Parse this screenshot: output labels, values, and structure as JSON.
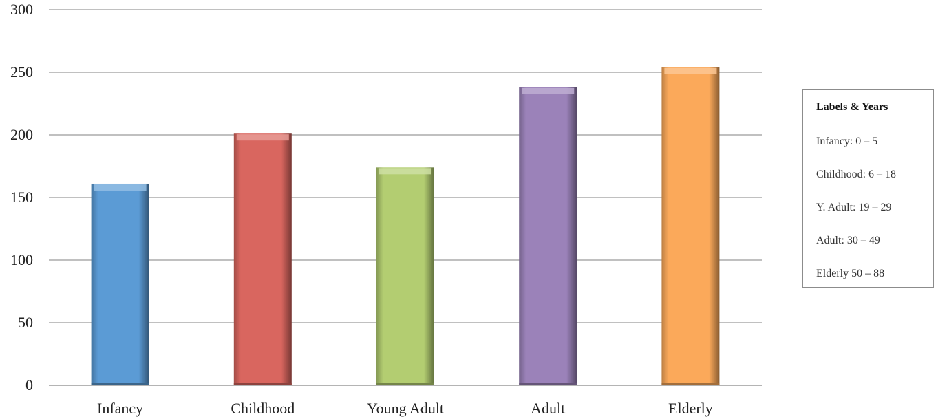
{
  "chart_data": {
    "type": "bar",
    "categories": [
      "Infancy",
      "Childhood",
      "Young Adult",
      "Adult",
      "Elderly"
    ],
    "values": [
      161,
      201,
      174,
      238,
      254
    ],
    "colors": [
      "#5b9bd5",
      "#d9665f",
      "#b3cd71",
      "#9b82b9",
      "#fba95a"
    ],
    "ylim": [
      0,
      300
    ],
    "yticks": [
      "0",
      "50",
      "100",
      "150",
      "200",
      "250",
      "300"
    ],
    "grid": true,
    "legend": {
      "placement": "right",
      "title": "Labels & Years",
      "items": [
        "Infancy: 0 – 5",
        "Childhood: 6 – 18",
        "Y. Adult: 19 – 29",
        "Adult: 30 – 49",
        "Elderly 50 – 88"
      ]
    }
  }
}
